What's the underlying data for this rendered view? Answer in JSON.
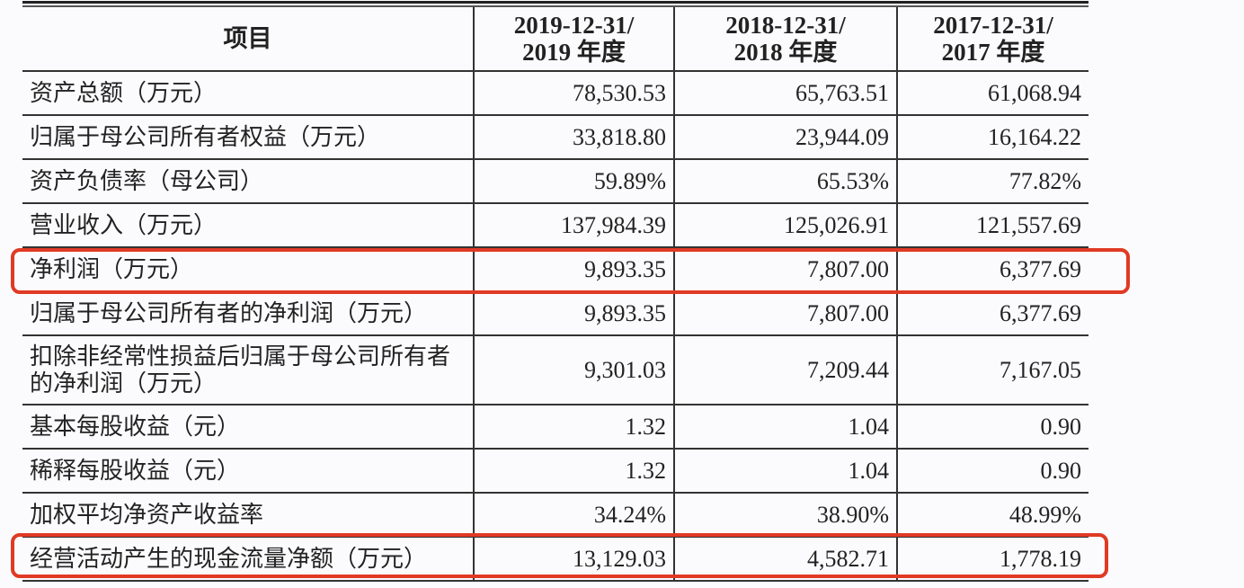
{
  "table": {
    "headers": [
      "项目",
      "2019-12-31/\n2019 年度",
      "2018-12-31/\n2018 年度",
      "2017-12-31/\n2017 年度"
    ],
    "header_lines": [
      [
        "项目"
      ],
      [
        "2019-12-31/",
        "2019 年度"
      ],
      [
        "2018-12-31/",
        "2018 年度"
      ],
      [
        "2017-12-31/",
        "2017 年度"
      ]
    ],
    "rows": [
      {
        "label": "资产总额（万元）",
        "values": [
          "78,530.53",
          "65,763.51",
          "61,068.94"
        ]
      },
      {
        "label": "归属于母公司所有者权益（万元）",
        "values": [
          "33,818.80",
          "23,944.09",
          "16,164.22"
        ]
      },
      {
        "label": "资产负债率（母公司）",
        "values": [
          "59.89%",
          "65.53%",
          "77.82%"
        ]
      },
      {
        "label": "营业收入（万元）",
        "values": [
          "137,984.39",
          "125,026.91",
          "121,557.69"
        ]
      },
      {
        "label": "净利润（万元）",
        "values": [
          "9,893.35",
          "7,807.00",
          "6,377.69"
        ],
        "highlighted": true
      },
      {
        "label": "归属于母公司所有者的净利润（万元）",
        "values": [
          "9,893.35",
          "7,807.00",
          "6,377.69"
        ]
      },
      {
        "label": "扣除非经常性损益后归属于母公司所有者的净利润（万元）",
        "values": [
          "9,301.03",
          "7,209.44",
          "7,167.05"
        ]
      },
      {
        "label": "基本每股收益（元）",
        "values": [
          "1.32",
          "1.04",
          "0.90"
        ]
      },
      {
        "label": "稀释每股收益（元）",
        "values": [
          "1.32",
          "1.04",
          "0.90"
        ]
      },
      {
        "label": "加权平均净资产收益率",
        "values": [
          "34.24%",
          "38.90%",
          "48.99%"
        ]
      },
      {
        "label": "经营活动产生的现金流量净额（万元）",
        "values": [
          "13,129.03",
          "4,582.71",
          "1,778.19"
        ],
        "highlighted": true
      }
    ]
  },
  "colors": {
    "highlight": "#e03a24",
    "rule": "#333333"
  }
}
